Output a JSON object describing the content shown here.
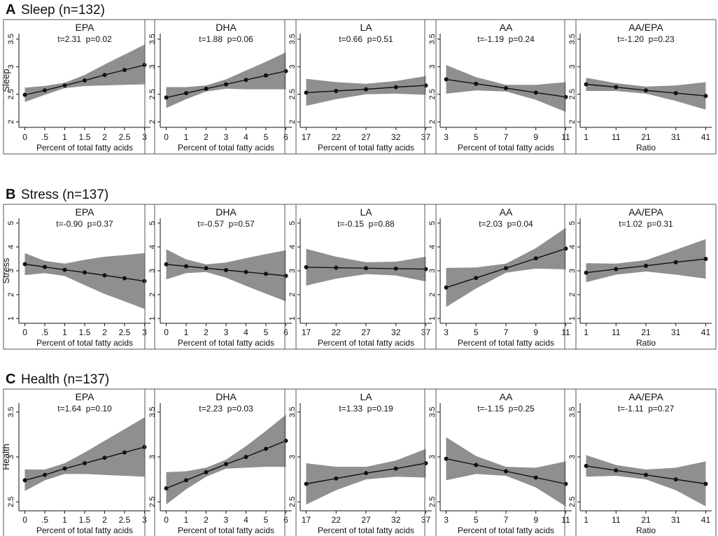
{
  "figure": {
    "colors": {
      "band": "#8f8f8f",
      "line": "#111111",
      "axis": "#111111",
      "frame": "#555555",
      "background": "#ffffff"
    }
  },
  "chart_data": [
    {
      "section": "A",
      "heading": "Sleep (n=132)",
      "ylabel": "Sleep",
      "ylim": [
        1.9,
        3.6
      ],
      "yticks": [
        2,
        2.5,
        3,
        3.5
      ],
      "ytick_labels": [
        "2",
        "2.5",
        "3",
        "3.5"
      ],
      "panels": [
        {
          "type": "line",
          "title": "EPA",
          "stat": "t=2.31  p=0.02",
          "xlabel": "Percent of total fatty acids",
          "xlim": [
            -0.15,
            3.15
          ],
          "xticks": [
            0,
            0.5,
            1,
            1.5,
            2,
            2.5,
            3
          ],
          "xtick_labels": [
            "0",
            ".5",
            "1",
            "1.5",
            "2",
            "2.5",
            "3"
          ],
          "x": [
            0,
            0.5,
            1,
            1.5,
            2,
            2.5,
            3
          ],
          "y": [
            2.49,
            2.57,
            2.66,
            2.75,
            2.85,
            2.94,
            3.03
          ],
          "lower": [
            2.36,
            2.49,
            2.61,
            2.65,
            2.66,
            2.67,
            2.68
          ],
          "upper": [
            2.62,
            2.65,
            2.71,
            2.85,
            3.04,
            3.22,
            3.4
          ]
        },
        {
          "type": "line",
          "title": "DHA",
          "stat": "t=1.88  p=0.06",
          "xlabel": "Percent of total fatty acids",
          "xlim": [
            -0.3,
            6.3
          ],
          "xticks": [
            0,
            1,
            2,
            3,
            4,
            5,
            6
          ],
          "xtick_labels": [
            "0",
            "1",
            "2",
            "3",
            "4",
            "5",
            "6"
          ],
          "x": [
            0,
            1,
            2,
            3,
            4,
            5,
            6
          ],
          "y": [
            2.44,
            2.52,
            2.6,
            2.68,
            2.76,
            2.84,
            2.92
          ],
          "lower": [
            2.25,
            2.41,
            2.55,
            2.6,
            2.59,
            2.59,
            2.59
          ],
          "upper": [
            2.63,
            2.63,
            2.66,
            2.77,
            2.93,
            3.09,
            3.26
          ]
        },
        {
          "type": "line",
          "title": "LA",
          "stat": "t=0.66  p=0.51",
          "xlabel": "Percent of total fatty acids",
          "xlim": [
            16,
            38
          ],
          "xticks": [
            17,
            22,
            27,
            32,
            37
          ],
          "xtick_labels": [
            "17",
            "22",
            "27",
            "32",
            "37"
          ],
          "x": [
            17,
            22,
            27,
            32,
            37
          ],
          "y": [
            2.53,
            2.56,
            2.59,
            2.63,
            2.66
          ],
          "lower": [
            2.29,
            2.41,
            2.5,
            2.51,
            2.49
          ],
          "upper": [
            2.78,
            2.72,
            2.69,
            2.74,
            2.83
          ]
        },
        {
          "type": "line",
          "title": "AA",
          "stat": "t=-1.19  p=0.24",
          "xlabel": "Percent of total fatty acids",
          "xlim": [
            2.6,
            11.4
          ],
          "xticks": [
            3,
            5,
            7,
            9,
            11
          ],
          "xtick_labels": [
            "3",
            "5",
            "7",
            "9",
            "11"
          ],
          "x": [
            3,
            5,
            7,
            9,
            11
          ],
          "y": [
            2.77,
            2.69,
            2.61,
            2.53,
            2.45
          ],
          "lower": [
            2.51,
            2.57,
            2.55,
            2.4,
            2.18
          ],
          "upper": [
            3.03,
            2.81,
            2.67,
            2.67,
            2.72
          ]
        },
        {
          "type": "line",
          "title": "AA/EPA",
          "stat": "t=-1.20  p=0.23",
          "xlabel": "Ratio",
          "xlim": [
            -1,
            43
          ],
          "xticks": [
            1,
            11,
            21,
            31,
            41
          ],
          "xtick_labels": [
            "1",
            "11",
            "21",
            "31",
            "41"
          ],
          "x": [
            1,
            11,
            21,
            31,
            41
          ],
          "y": [
            2.68,
            2.63,
            2.57,
            2.52,
            2.47
          ],
          "lower": [
            2.56,
            2.56,
            2.51,
            2.38,
            2.22
          ],
          "upper": [
            2.8,
            2.7,
            2.64,
            2.66,
            2.72
          ]
        }
      ]
    },
    {
      "section": "B",
      "heading": "Stress (n=137)",
      "ylabel": "Stress",
      "ylim": [
        0.8,
        5.2
      ],
      "yticks": [
        1,
        2,
        3,
        4,
        5
      ],
      "ytick_labels": [
        "1",
        "2",
        "3",
        "4",
        "5"
      ],
      "panels": [
        {
          "type": "line",
          "title": "EPA",
          "stat": "t=-0.90  p=0.37",
          "xlabel": "Percent of total fatty acids",
          "xlim": [
            -0.15,
            3.15
          ],
          "xticks": [
            0,
            0.5,
            1,
            1.5,
            2,
            2.5,
            3
          ],
          "xtick_labels": [
            "0",
            ".5",
            "1",
            "1.5",
            "2",
            "2.5",
            "3"
          ],
          "x": [
            0,
            0.5,
            1,
            1.5,
            2,
            2.5,
            3
          ],
          "y": [
            3.28,
            3.16,
            3.04,
            2.93,
            2.81,
            2.69,
            2.57
          ],
          "lower": [
            2.82,
            2.9,
            2.78,
            2.4,
            2.03,
            1.72,
            1.4
          ],
          "upper": [
            3.74,
            3.42,
            3.3,
            3.46,
            3.59,
            3.66,
            3.74
          ]
        },
        {
          "type": "line",
          "title": "DHA",
          "stat": "t=-0.57  p=0.57",
          "xlabel": "Percent of total fatty acids",
          "xlim": [
            -0.3,
            6.3
          ],
          "xticks": [
            0,
            1,
            2,
            3,
            4,
            5,
            6
          ],
          "xtick_labels": [
            "0",
            "1",
            "2",
            "3",
            "4",
            "5",
            "6"
          ],
          "x": [
            0,
            1,
            2,
            3,
            4,
            5,
            6
          ],
          "y": [
            3.27,
            3.19,
            3.11,
            3.03,
            2.95,
            2.87,
            2.79
          ],
          "lower": [
            2.64,
            2.9,
            2.95,
            2.71,
            2.37,
            2.04,
            1.72
          ],
          "upper": [
            3.9,
            3.48,
            3.27,
            3.35,
            3.53,
            3.7,
            3.86
          ]
        },
        {
          "type": "line",
          "title": "LA",
          "stat": "t=-0.15  p=0.88",
          "xlabel": "Percent of total fatty acids",
          "xlim": [
            16,
            38
          ],
          "xticks": [
            17,
            22,
            27,
            32,
            37
          ],
          "xtick_labels": [
            "17",
            "22",
            "27",
            "32",
            "37"
          ],
          "x": [
            17,
            22,
            27,
            32,
            37
          ],
          "y": [
            3.15,
            3.13,
            3.11,
            3.09,
            3.07
          ],
          "lower": [
            2.38,
            2.67,
            2.86,
            2.8,
            2.55
          ],
          "upper": [
            3.92,
            3.59,
            3.36,
            3.38,
            3.59
          ]
        },
        {
          "type": "line",
          "title": "AA",
          "stat": "t=2.03  p=0.04",
          "xlabel": "Percent of total fatty acids",
          "xlim": [
            2.6,
            11.4
          ],
          "xticks": [
            3,
            5,
            7,
            9,
            11
          ],
          "xtick_labels": [
            "3",
            "5",
            "7",
            "9",
            "11"
          ],
          "x": [
            3,
            5,
            7,
            9,
            11
          ],
          "y": [
            2.3,
            2.7,
            3.11,
            3.52,
            3.93
          ],
          "lower": [
            1.48,
            2.26,
            2.92,
            3.09,
            3.06
          ],
          "upper": [
            3.12,
            3.14,
            3.3,
            3.95,
            4.8
          ]
        },
        {
          "type": "line",
          "title": "AA/EPA",
          "stat": "t=1.02  p=0.31",
          "xlabel": "Ratio",
          "xlim": [
            -1,
            43
          ],
          "xticks": [
            1,
            11,
            21,
            31,
            41
          ],
          "xtick_labels": [
            "1",
            "11",
            "21",
            "31",
            "41"
          ],
          "x": [
            1,
            11,
            21,
            31,
            41
          ],
          "y": [
            2.92,
            3.07,
            3.21,
            3.36,
            3.5
          ],
          "lower": [
            2.52,
            2.84,
            2.97,
            2.84,
            2.67
          ],
          "upper": [
            3.32,
            3.3,
            3.45,
            3.88,
            4.33
          ]
        }
      ]
    },
    {
      "section": "C",
      "heading": "Health (n=137)",
      "ylabel": "Health",
      "ylim": [
        2.4,
        3.6
      ],
      "yticks": [
        2.5,
        3,
        3.5
      ],
      "ytick_labels": [
        "2.5",
        "3",
        "3.5"
      ],
      "panels": [
        {
          "type": "line",
          "title": "EPA",
          "stat": "t=1.64  p=0.10",
          "xlabel": "Percent of total fatty acids",
          "xlim": [
            -0.15,
            3.15
          ],
          "xticks": [
            0,
            0.5,
            1,
            1.5,
            2,
            2.5,
            3
          ],
          "xtick_labels": [
            "0",
            ".5",
            "1",
            "1.5",
            "2",
            "2.5",
            "3"
          ],
          "x": [
            0,
            0.5,
            1,
            1.5,
            2,
            2.5,
            3
          ],
          "y": [
            2.74,
            2.8,
            2.87,
            2.93,
            2.99,
            3.05,
            3.11
          ],
          "lower": [
            2.62,
            2.74,
            2.81,
            2.81,
            2.8,
            2.79,
            2.78
          ],
          "upper": [
            2.86,
            2.86,
            2.93,
            3.05,
            3.18,
            3.31,
            3.44
          ]
        },
        {
          "type": "line",
          "title": "DHA",
          "stat": "t=2.23  p=0.03",
          "xlabel": "Percent of total fatty acids",
          "xlim": [
            -0.3,
            6.3
          ],
          "xticks": [
            0,
            1,
            2,
            3,
            4,
            5,
            6
          ],
          "xtick_labels": [
            "0",
            "1",
            "2",
            "3",
            "4",
            "5",
            "6"
          ],
          "x": [
            0,
            1,
            2,
            3,
            4,
            5,
            6
          ],
          "y": [
            2.65,
            2.74,
            2.83,
            2.92,
            3.0,
            3.09,
            3.18
          ],
          "lower": [
            2.47,
            2.64,
            2.78,
            2.87,
            2.88,
            2.89,
            2.89
          ],
          "upper": [
            2.83,
            2.84,
            2.88,
            2.97,
            3.12,
            3.29,
            3.47
          ]
        },
        {
          "type": "line",
          "title": "LA",
          "stat": "t=1.33  p=0.19",
          "xlabel": "Percent of total fatty acids",
          "xlim": [
            16,
            38
          ],
          "xticks": [
            17,
            22,
            27,
            32,
            37
          ],
          "xtick_labels": [
            "17",
            "22",
            "27",
            "32",
            "37"
          ],
          "x": [
            17,
            22,
            27,
            32,
            37
          ],
          "y": [
            2.7,
            2.76,
            2.82,
            2.87,
            2.93
          ],
          "lower": [
            2.47,
            2.63,
            2.75,
            2.78,
            2.77
          ],
          "upper": [
            2.93,
            2.89,
            2.89,
            2.96,
            3.09
          ]
        },
        {
          "type": "line",
          "title": "AA",
          "stat": "t=-1.15  p=0.25",
          "xlabel": "Percent of total fatty acids",
          "xlim": [
            2.6,
            11.4
          ],
          "xticks": [
            3,
            5,
            7,
            9,
            11
          ],
          "xtick_labels": [
            "3",
            "5",
            "7",
            "9",
            "11"
          ],
          "x": [
            3,
            5,
            7,
            9,
            11
          ],
          "y": [
            2.98,
            2.91,
            2.84,
            2.77,
            2.7
          ],
          "lower": [
            2.74,
            2.81,
            2.79,
            2.66,
            2.45
          ],
          "upper": [
            3.22,
            3.01,
            2.89,
            2.88,
            2.95
          ]
        },
        {
          "type": "line",
          "title": "AA/EPA",
          "stat": "t=-1.11  p=0.27",
          "xlabel": "Ratio",
          "xlim": [
            -1,
            43
          ],
          "xticks": [
            1,
            11,
            21,
            31,
            41
          ],
          "xtick_labels": [
            "1",
            "11",
            "21",
            "31",
            "41"
          ],
          "x": [
            1,
            11,
            21,
            31,
            41
          ],
          "y": [
            2.9,
            2.85,
            2.8,
            2.75,
            2.7
          ],
          "lower": [
            2.78,
            2.79,
            2.75,
            2.63,
            2.45
          ],
          "upper": [
            3.02,
            2.91,
            2.86,
            2.88,
            2.95
          ]
        }
      ]
    }
  ]
}
